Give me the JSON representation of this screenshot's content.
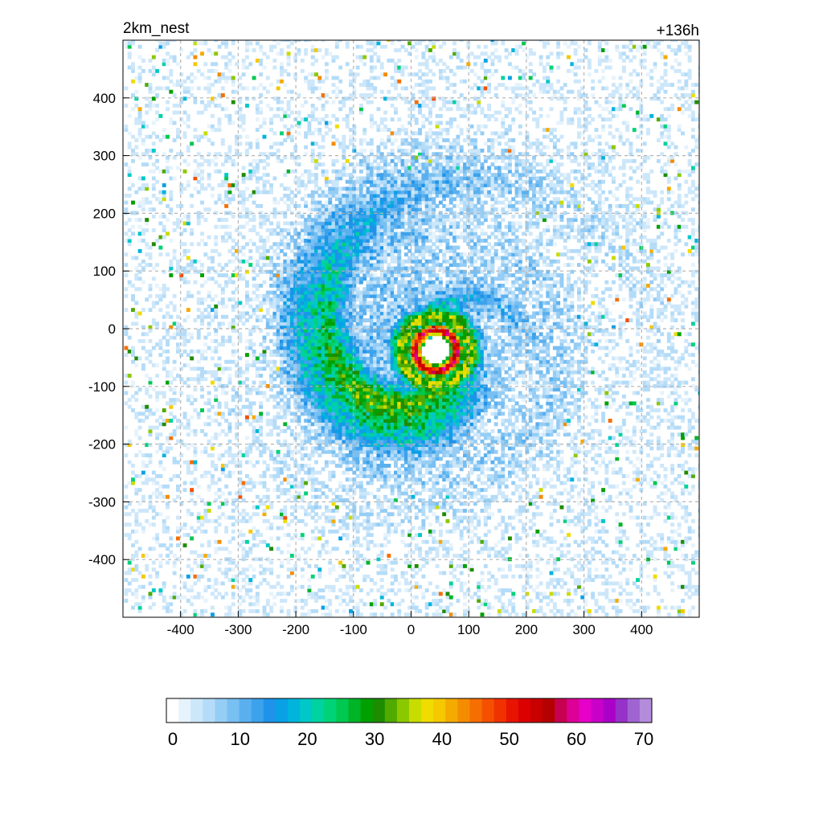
{
  "chart_data": {
    "type": "heatmap",
    "title_left": "2km_nest",
    "title_right": "+136h",
    "xlabel": "",
    "ylabel": "",
    "xlim": [
      -500,
      500
    ],
    "ylim": [
      -500,
      500
    ],
    "x_ticks": [
      -400,
      -300,
      -200,
      -100,
      0,
      100,
      200,
      300,
      400
    ],
    "y_ticks": [
      400,
      300,
      200,
      100,
      0,
      -100,
      -200,
      -300,
      -400
    ],
    "grid": true,
    "grid_style": "dashed",
    "field": {
      "structure": "tropical cyclone with closed eyewall and spiral rainbands",
      "eye_center": [
        40,
        -40
      ],
      "eye_radius": 25,
      "eyewall_peak_value": 50,
      "rainband_extent_radius": 300
    },
    "colorbar": {
      "min": 0,
      "max": 70,
      "tick_values": [
        0,
        10,
        20,
        30,
        40,
        50,
        60,
        70
      ],
      "colors": [
        "#ffffff",
        "#e6f3fc",
        "#cde7fa",
        "#b4dcf8",
        "#96cdf5",
        "#78bff2",
        "#5ab0ef",
        "#3ca2ec",
        "#1e93e9",
        "#0aa0e6",
        "#00b4dc",
        "#00c8c8",
        "#00d2a0",
        "#00d278",
        "#00c850",
        "#00b428",
        "#00a000",
        "#1e8c00",
        "#50aa00",
        "#8cc800",
        "#c8dc00",
        "#f0dc00",
        "#f5c800",
        "#f5aa00",
        "#f58c00",
        "#f56e00",
        "#f55000",
        "#f03200",
        "#e61400",
        "#dc0000",
        "#c80000",
        "#b40000",
        "#c80050",
        "#dc0096",
        "#e600c8",
        "#c800c8",
        "#aa00c8",
        "#9632c8",
        "#a064d2",
        "#b48cdc"
      ]
    }
  }
}
